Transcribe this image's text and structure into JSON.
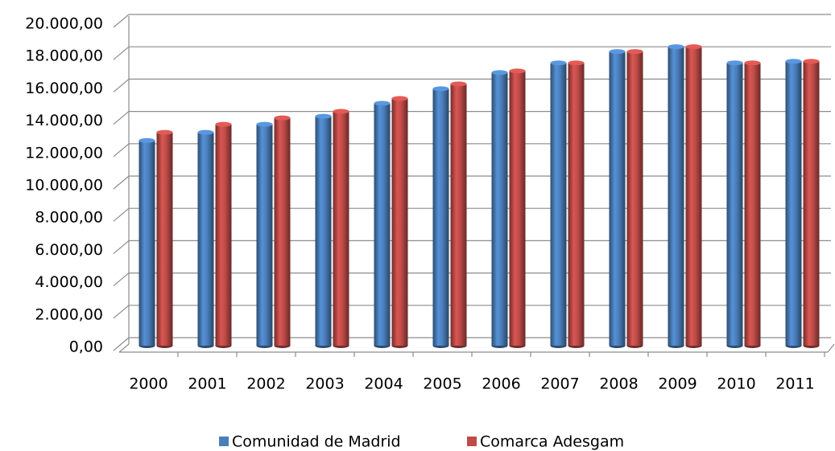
{
  "chart_data": {
    "type": "bar",
    "categories": [
      "2000",
      "2001",
      "2002",
      "2003",
      "2004",
      "2005",
      "2006",
      "2007",
      "2008",
      "2009",
      "2010",
      "2011"
    ],
    "series": [
      {
        "name": "Comunidad de Madrid",
        "color": "#4a7ebb",
        "values": [
          12800,
          13300,
          13800,
          14300,
          15100,
          16000,
          17000,
          17600,
          18300,
          18600,
          17600,
          17700
        ]
      },
      {
        "name": "Comarca Adesgam",
        "color": "#be4b48",
        "values": [
          13300,
          13800,
          14200,
          14600,
          15400,
          16300,
          17100,
          17600,
          18300,
          18600,
          17600,
          17700
        ]
      }
    ],
    "ylim": [
      0,
      20000
    ],
    "yticks": [
      {
        "value": 0,
        "label": "0,00"
      },
      {
        "value": 2000,
        "label": "2.000,00"
      },
      {
        "value": 4000,
        "label": "4.000,00"
      },
      {
        "value": 6000,
        "label": "6.000,00"
      },
      {
        "value": 8000,
        "label": "8.000,00"
      },
      {
        "value": 10000,
        "label": "10.000,00"
      },
      {
        "value": 12000,
        "label": "12.000,00"
      },
      {
        "value": 14000,
        "label": "14.000,00"
      },
      {
        "value": 16000,
        "label": "16.000,00"
      },
      {
        "value": 18000,
        "label": "18.000,00"
      },
      {
        "value": 20000,
        "label": "20.000,00"
      }
    ],
    "grid": true,
    "legend": "bottom"
  }
}
